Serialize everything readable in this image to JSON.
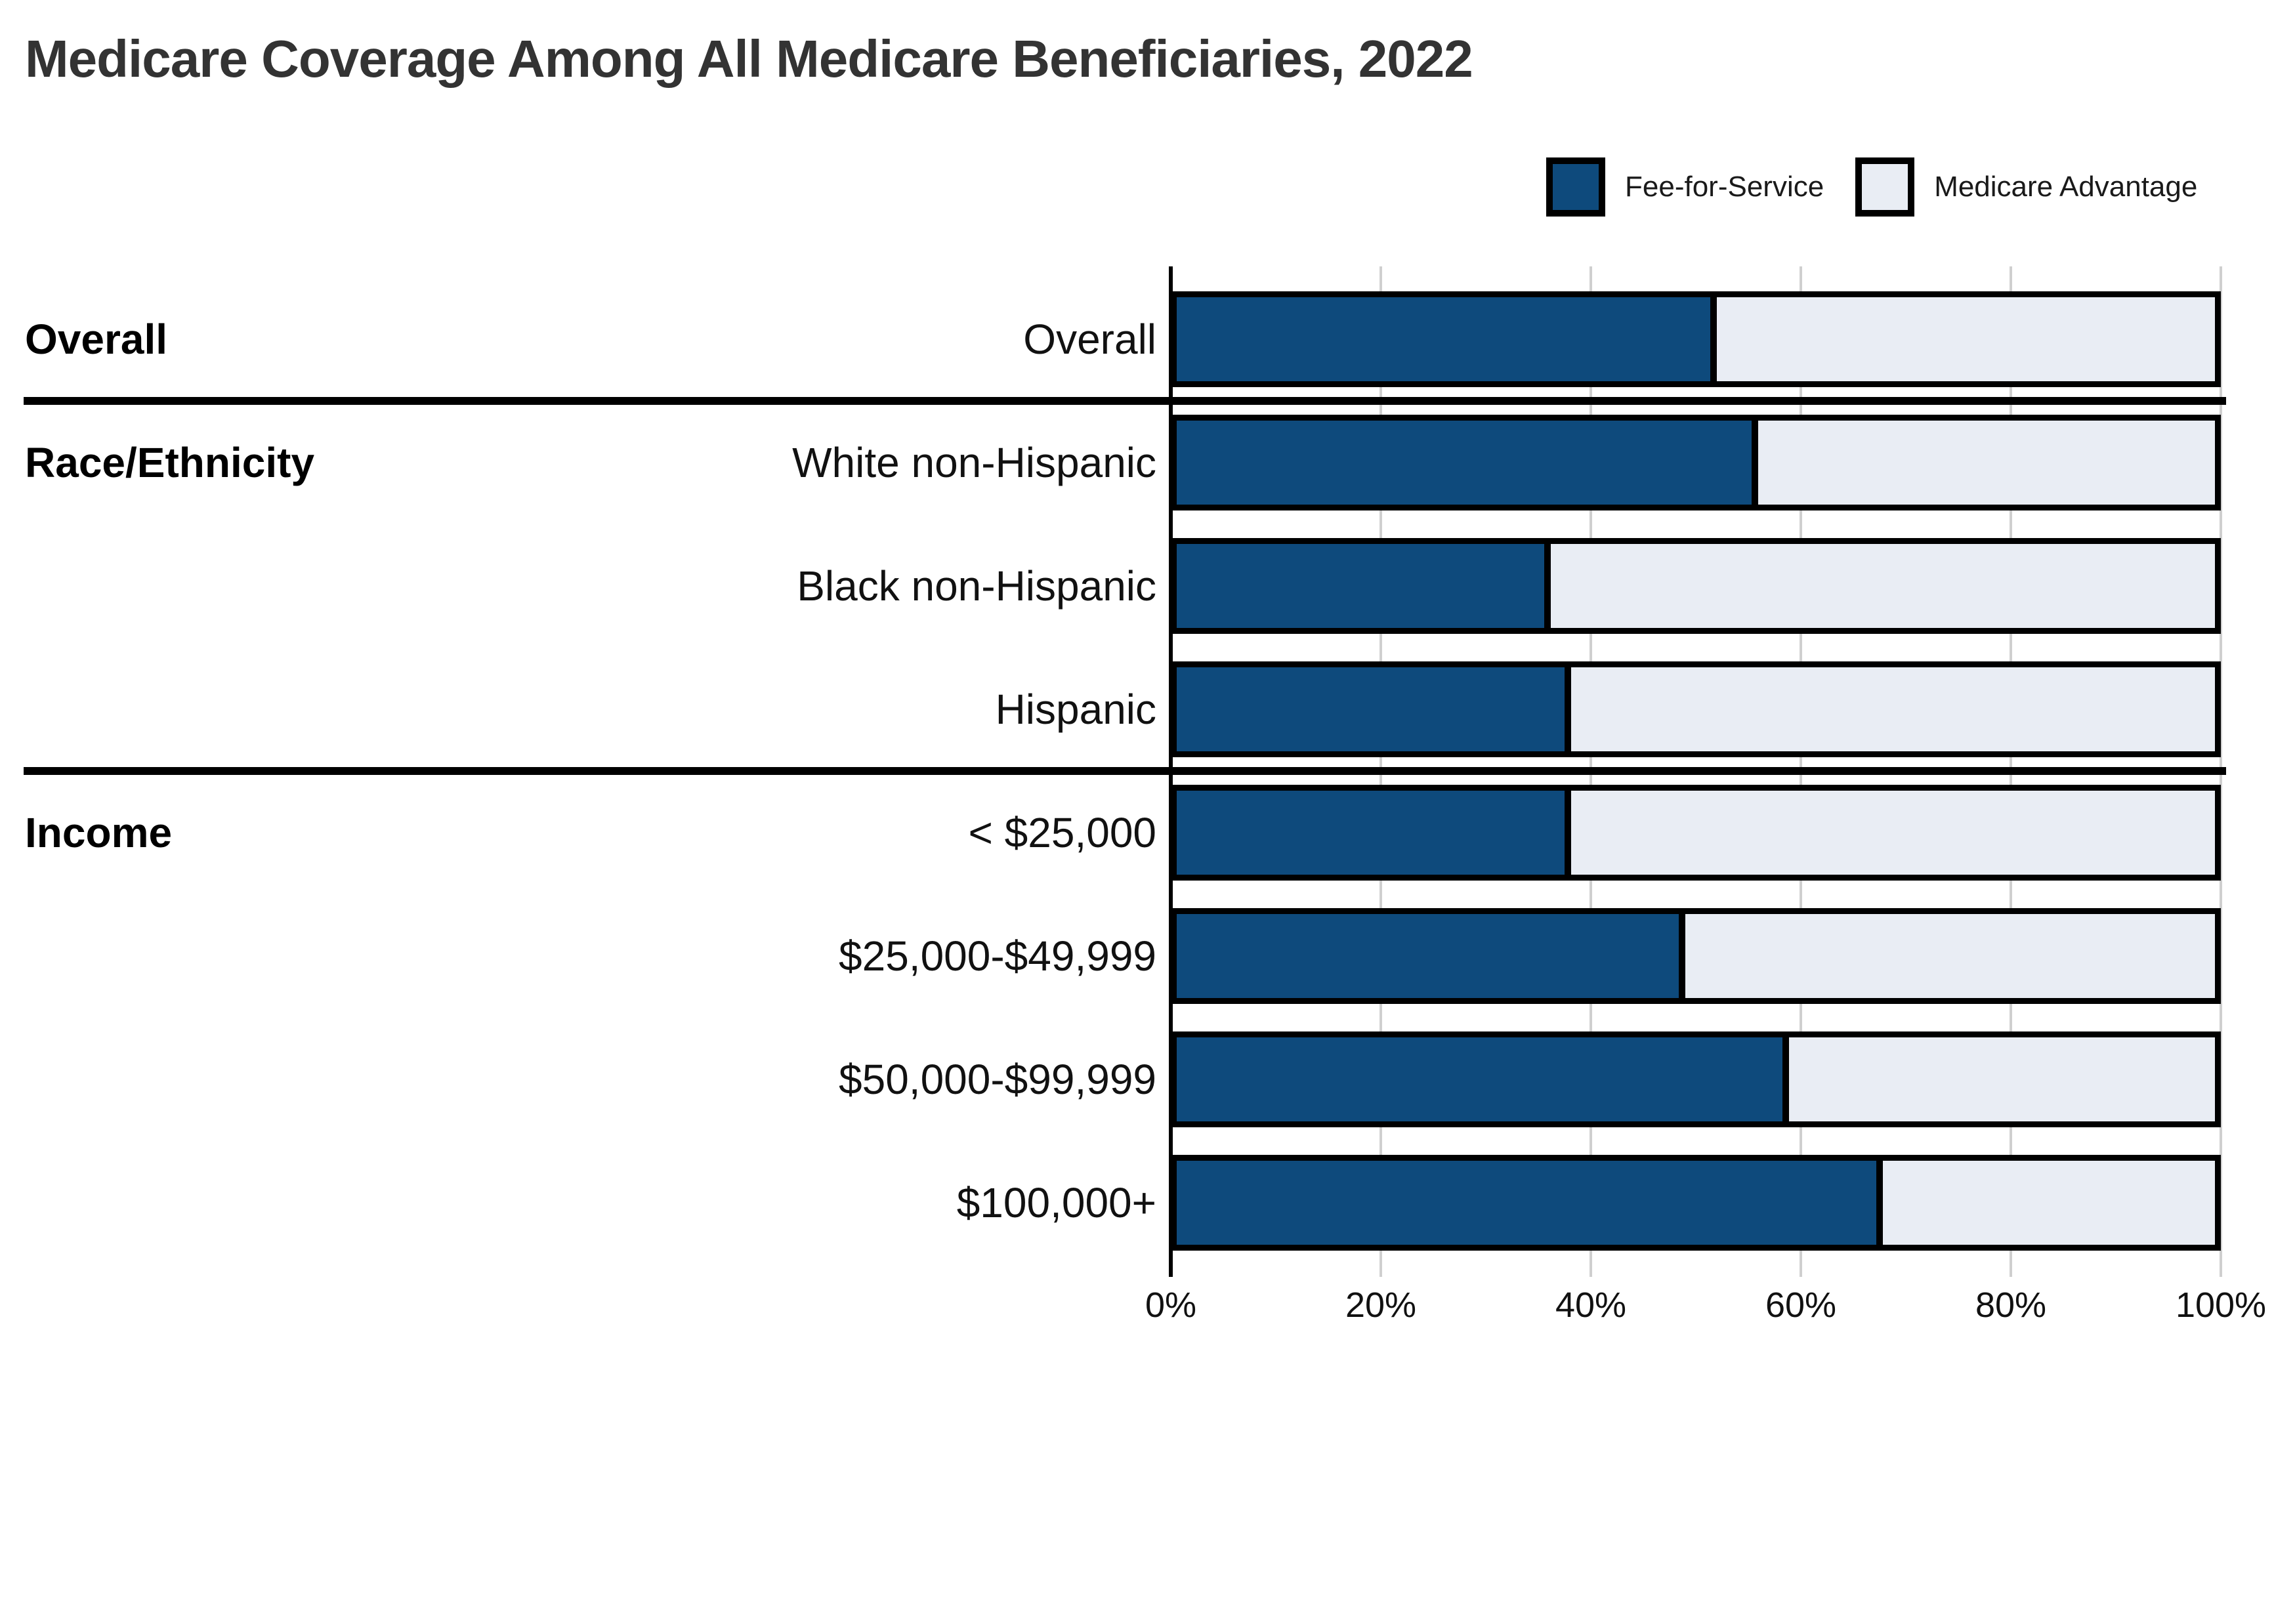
{
  "title": "Medicare Coverage Among All Medicare Beneficiaries, 2022",
  "legend": {
    "items": [
      {
        "label": "Fee-for-Service",
        "color": "#0e4a7c"
      },
      {
        "label": "Medicare Advantage",
        "color": "#e9edf4"
      }
    ]
  },
  "colors": {
    "fee_for_service": "#0e4a7c",
    "medicare_advantage": "#e9edf4",
    "bar_border": "#000000",
    "gridline": "#cfcfcf",
    "title_text": "#333333",
    "label_text": "#111111"
  },
  "sections": [
    {
      "label": "Overall"
    },
    {
      "label": "Race/Ethnicity"
    },
    {
      "label": "Income"
    }
  ],
  "rows": [
    {
      "label": "Overall",
      "fee_for_service": 52,
      "medicare_advantage": 48
    },
    {
      "label": "White non-Hispanic",
      "fee_for_service": 56,
      "medicare_advantage": 44
    },
    {
      "label": "Black non-Hispanic",
      "fee_for_service": 36,
      "medicare_advantage": 64
    },
    {
      "label": "Hispanic",
      "fee_for_service": 38,
      "medicare_advantage": 62
    },
    {
      "label": "< $25,000",
      "fee_for_service": 38,
      "medicare_advantage": 62
    },
    {
      "label": "$25,000-$49,999",
      "fee_for_service": 49,
      "medicare_advantage": 51
    },
    {
      "label": "$50,000-$99,999",
      "fee_for_service": 59,
      "medicare_advantage": 41
    },
    {
      "label": "$100,000+",
      "fee_for_service": 68,
      "medicare_advantage": 32
    }
  ],
  "x_axis": {
    "tick_labels": [
      "0%",
      "20%",
      "40%",
      "60%",
      "80%",
      "100%"
    ]
  },
  "chart_data": {
    "type": "bar",
    "orientation": "horizontal",
    "stacked": true,
    "title": "Medicare Coverage Among All Medicare Beneficiaries, 2022",
    "categories": [
      "Overall",
      "White non-Hispanic",
      "Black non-Hispanic",
      "Hispanic",
      "< $25,000",
      "$25,000-$49,999",
      "$50,000-$99,999",
      "$100,000+"
    ],
    "category_groups": {
      "Overall": [
        "Overall"
      ],
      "Race/Ethnicity": [
        "White non-Hispanic",
        "Black non-Hispanic",
        "Hispanic"
      ],
      "Income": [
        "< $25,000",
        "$25,000-$49,999",
        "$50,000-$99,999",
        "$100,000+"
      ]
    },
    "series": [
      {
        "name": "Fee-for-Service",
        "color": "#0e4a7c",
        "values": [
          52,
          56,
          36,
          38,
          38,
          49,
          59,
          68
        ]
      },
      {
        "name": "Medicare Advantage",
        "color": "#e9edf4",
        "values": [
          48,
          44,
          64,
          62,
          62,
          51,
          41,
          32
        ]
      }
    ],
    "xlabel": "",
    "ylabel": "",
    "xlim": [
      0,
      100
    ],
    "x_tick_labels": [
      "0%",
      "20%",
      "40%",
      "60%",
      "80%",
      "100%"
    ],
    "grid": true,
    "legend_position": "top-right"
  }
}
